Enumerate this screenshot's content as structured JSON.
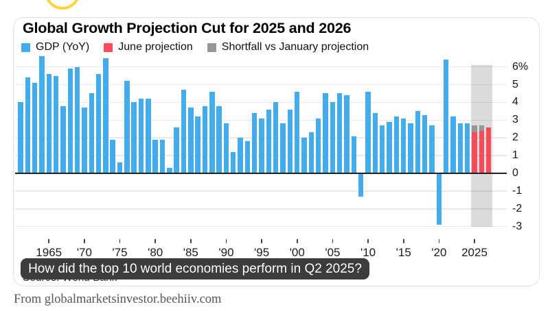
{
  "overlay": {
    "question": "How did the top 10 world economies perform in Q2 2025?"
  },
  "card_footer": {
    "source": "Source: World Bank"
  },
  "page_footer": {
    "text": "From globalmarketsinvestor.beehiiv.com"
  },
  "colors": {
    "gdp_blue": "#43ACEC",
    "projection_red": "#FB4B5B",
    "shortfall_gray": "#95989A",
    "band_gray": "#dcdcdc",
    "accent_yellow": "#FFD23E"
  },
  "chart_data": {
    "type": "bar",
    "title": "Global Growth Projection Cut for 2025 and 2026",
    "unit": "%",
    "ylabel": "",
    "xlabel": "",
    "ylim": [
      -3,
      6.6
    ],
    "grid": true,
    "legend_position": "top-left",
    "legend": [
      {
        "label": "GDP (YoY)",
        "color": "#43ACEC"
      },
      {
        "label": "June projection",
        "color": "#FB4B5B"
      },
      {
        "label": "Shortfall vs January projection",
        "color": "#95989A"
      }
    ],
    "y_ticks": [
      {
        "value": 6,
        "label": "6%"
      },
      {
        "value": 5,
        "label": "5"
      },
      {
        "value": 4,
        "label": "4"
      },
      {
        "value": 3,
        "label": "3"
      },
      {
        "value": 2,
        "label": "2"
      },
      {
        "value": 1,
        "label": "1"
      },
      {
        "value": 0,
        "label": "0"
      },
      {
        "value": -1,
        "label": "-1"
      },
      {
        "value": -2,
        "label": "-2"
      },
      {
        "value": -3,
        "label": "-3"
      }
    ],
    "x_ticks": [
      {
        "year": 1965,
        "label": "1965"
      },
      {
        "year": 1970,
        "label": "'70"
      },
      {
        "year": 1975,
        "label": "'75"
      },
      {
        "year": 1980,
        "label": "'80"
      },
      {
        "year": 1985,
        "label": "'85"
      },
      {
        "year": 1990,
        "label": "'90"
      },
      {
        "year": 1995,
        "label": "'95"
      },
      {
        "year": 2000,
        "label": "'00"
      },
      {
        "year": 2005,
        "label": "'05"
      },
      {
        "year": 2010,
        "label": "'10"
      },
      {
        "year": 2015,
        "label": "'15"
      },
      {
        "year": 2020,
        "label": "'20"
      },
      {
        "year": 2025,
        "label": "2025"
      }
    ],
    "gdp_series": {
      "name": "GDP (YoY)",
      "start_year": 1961,
      "values": [
        4.0,
        5.4,
        5.1,
        6.6,
        5.6,
        5.5,
        3.8,
        5.9,
        6.0,
        3.7,
        4.5,
        5.6,
        6.5,
        1.9,
        0.6,
        5.2,
        4.0,
        4.2,
        4.2,
        1.9,
        1.9,
        0.3,
        2.6,
        4.7,
        3.7,
        3.2,
        3.8,
        4.6,
        3.8,
        2.8,
        1.2,
        2.0,
        1.8,
        3.4,
        3.1,
        3.6,
        4.0,
        2.8,
        3.6,
        4.6,
        2.0,
        2.3,
        3.1,
        4.5,
        4.0,
        4.5,
        4.4,
        2.1,
        -1.3,
        4.6,
        3.4,
        2.7,
        2.9,
        3.2,
        3.1,
        2.8,
        3.5,
        3.3,
        2.7,
        -2.9,
        6.4,
        3.2,
        2.8,
        2.8
      ]
    },
    "projections": [
      {
        "year": 2025,
        "june": 2.3,
        "january": 2.7
      },
      {
        "year": 2026,
        "june": 2.4,
        "january": 2.7
      },
      {
        "year": 2027,
        "june": 2.6,
        "january": 2.6
      }
    ],
    "projection_band_years": [
      2025,
      2027
    ]
  }
}
